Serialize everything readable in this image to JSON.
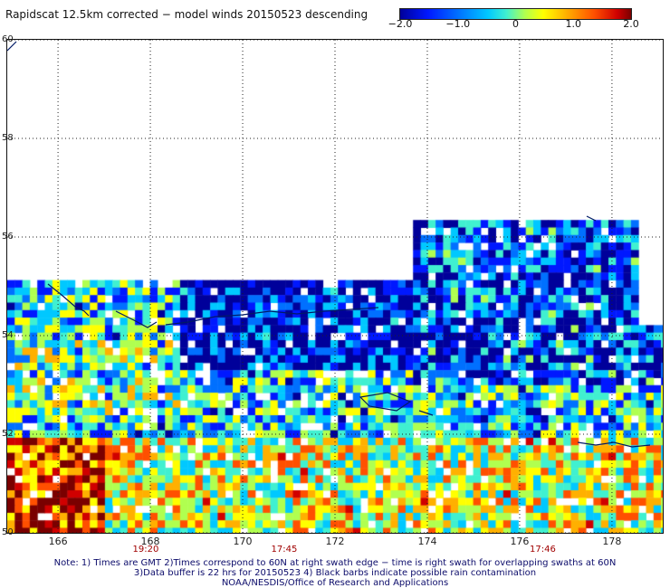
{
  "title": "Rapidscat 12.5km corrected − model winds 20150523 descending",
  "colorbar": {
    "labels": [
      "−2.0",
      "−1.0",
      "0",
      "1.0",
      "2.0"
    ],
    "values": [
      -2.0,
      -1.0,
      0,
      1.0,
      2.0
    ],
    "colors": [
      "#00009a",
      "#0018ff",
      "#0070ff",
      "#00c8ff",
      "#40f0d0",
      "#b0ff50",
      "#ffff00",
      "#ffb000",
      "#ff5000",
      "#d00000",
      "#7a0000"
    ]
  },
  "map": {
    "lat_labels": [
      "60",
      "58",
      "56",
      "54",
      "52",
      "50"
    ],
    "lat_values": [
      60,
      58,
      56,
      54,
      52,
      50
    ],
    "lon_labels": [
      "166",
      "168",
      "170",
      "172",
      "174",
      "176",
      "178"
    ],
    "lon_values": [
      166,
      168,
      170,
      172,
      174,
      176,
      178
    ],
    "lat_range": [
      50,
      60
    ],
    "lon_range": [
      164.9,
      179.1
    ],
    "time_labels": [
      {
        "text": "19:20",
        "lon": 167.9
      },
      {
        "text": "17:45",
        "lon": 170.9
      },
      {
        "text": "17:46",
        "lon": 176.5
      }
    ]
  },
  "notes": [
    "Note: 1) Times are GMT 2)Times correspond to 60N at right swath edge − time is right swath for overlapping swaths at 60N",
    "3)Data buffer is 22 hrs for 20150523 4) Black barbs indicate possible rain contamination",
    "NOAA/NESDIS/Office of Research and Applications"
  ]
}
